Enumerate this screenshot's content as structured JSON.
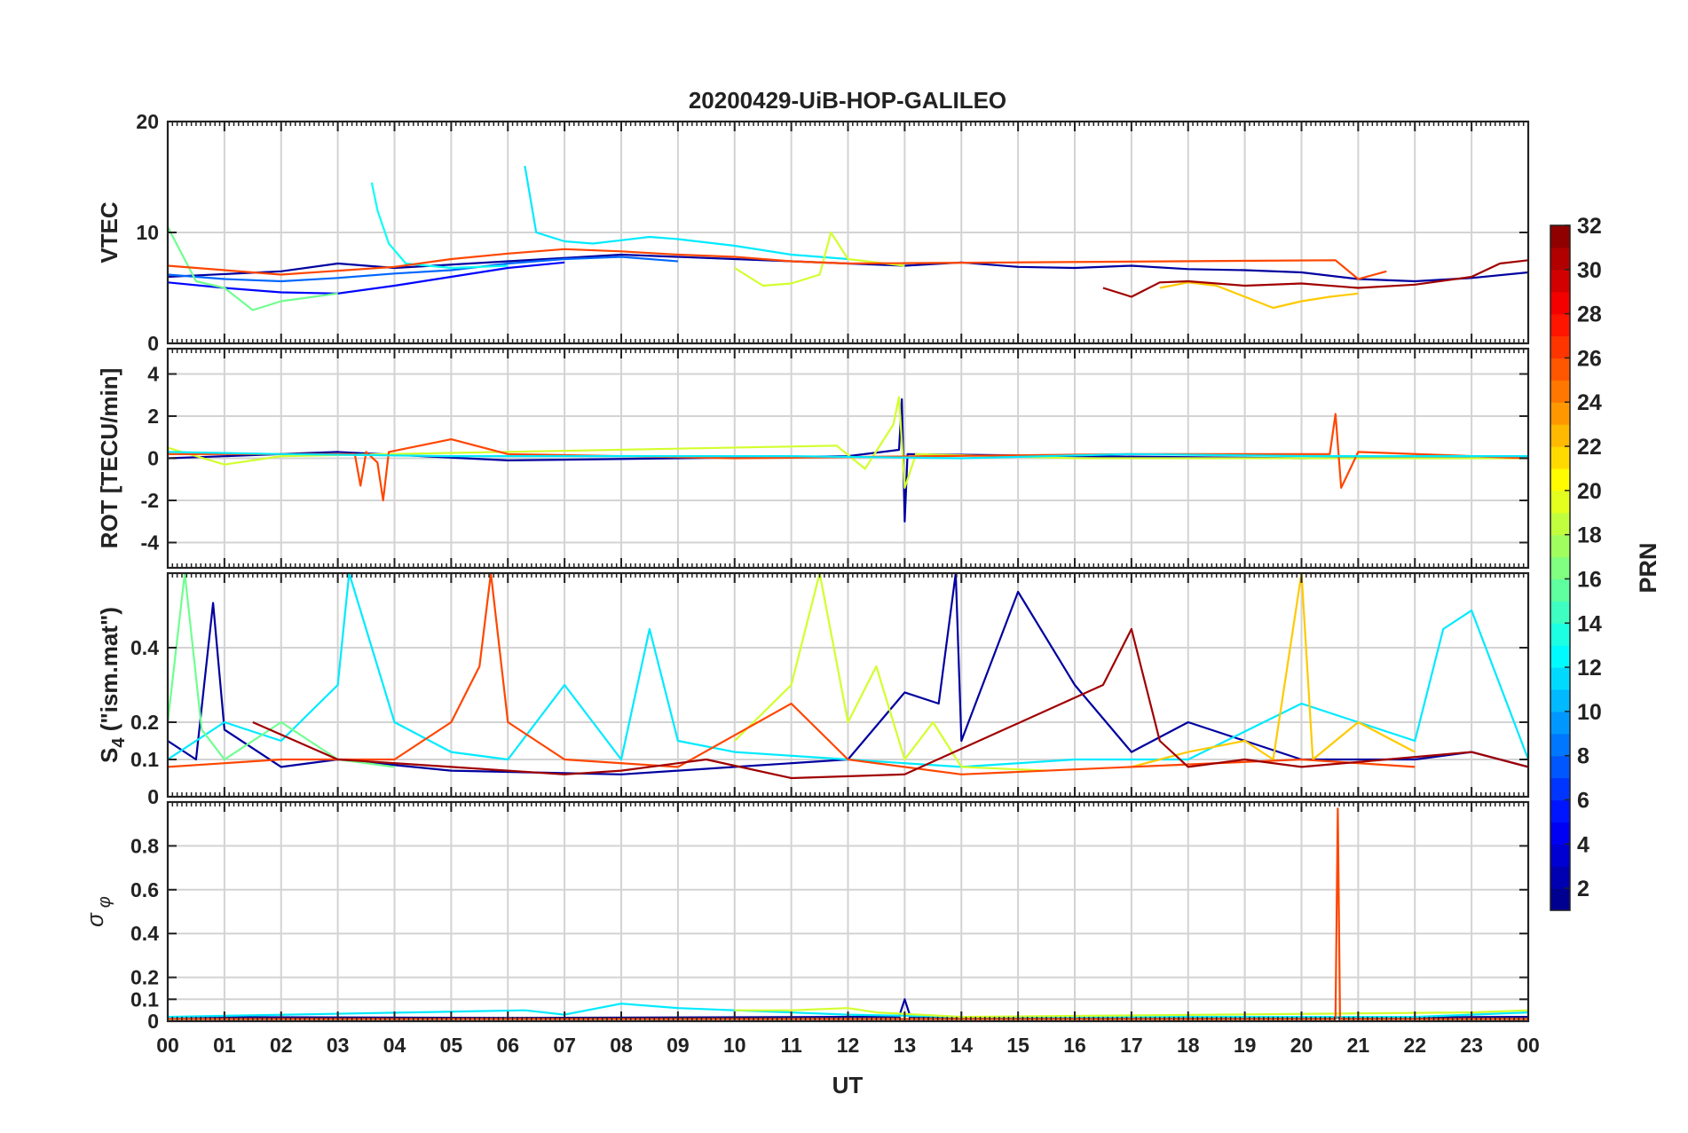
{
  "chart_data": {
    "type": "line",
    "title": "20200429-UiB-HOP-GALILEO",
    "xlabel": "UT",
    "x_tick_labels": [
      "00",
      "01",
      "02",
      "03",
      "04",
      "05",
      "06",
      "07",
      "08",
      "09",
      "10",
      "11",
      "12",
      "13",
      "14",
      "15",
      "16",
      "17",
      "18",
      "19",
      "20",
      "21",
      "22",
      "23",
      "00"
    ],
    "xlim": [
      0,
      24
    ],
    "grid": true,
    "colorbar": {
      "label": "PRN",
      "range": [
        1,
        32
      ],
      "tick_labels": [
        "2",
        "4",
        "6",
        "8",
        "10",
        "12",
        "14",
        "16",
        "18",
        "20",
        "22",
        "24",
        "26",
        "28",
        "30",
        "32"
      ],
      "colormap": "jet"
    },
    "panels": [
      {
        "ylabel": "VTEC",
        "ylim": [
          0,
          20
        ],
        "y_ticks": [
          0,
          10,
          20
        ],
        "y_tick_labels": [
          "0",
          "10",
          "20"
        ],
        "series": [
          {
            "prn": 2,
            "x": [
              0,
              2,
              3,
              4,
              6,
              8,
              10,
              12,
              13,
              14,
              15,
              16,
              17,
              18,
              19,
              20,
              21,
              22,
              23,
              24
            ],
            "values": [
              6.0,
              6.5,
              7.2,
              6.8,
              7.4,
              8.0,
              7.6,
              7.2,
              7.0,
              7.3,
              6.9,
              6.8,
              7.0,
              6.7,
              6.6,
              6.4,
              5.8,
              5.6,
              5.9,
              6.4
            ]
          },
          {
            "prn": 5,
            "x": [
              0,
              1,
              2,
              3,
              4,
              5,
              6,
              7
            ],
            "values": [
              5.5,
              5.0,
              4.6,
              4.5,
              5.2,
              6.0,
              6.8,
              7.3
            ]
          },
          {
            "prn": 8,
            "x": [
              0,
              1,
              2,
              3,
              4,
              5,
              6,
              7,
              8,
              9
            ],
            "values": [
              6.2,
              5.8,
              5.6,
              5.9,
              6.3,
              6.6,
              7.2,
              7.6,
              7.8,
              7.4
            ]
          },
          {
            "prn": 12,
            "x": [
              6.3,
              6.5,
              7,
              7.5,
              8,
              8.5,
              9,
              10,
              11,
              12
            ],
            "values": [
              16.0,
              10.0,
              9.2,
              9.0,
              9.3,
              9.6,
              9.4,
              8.8,
              8.0,
              7.6
            ]
          },
          {
            "prn": 13,
            "x": [
              3.6,
              3.7,
              3.9,
              4.2,
              5,
              6
            ],
            "values": [
              14.5,
              12.0,
              9.0,
              7.2,
              6.8,
              7.0
            ]
          },
          {
            "prn": 16,
            "x": [
              0,
              0.5,
              1,
              1.5,
              2,
              3
            ],
            "values": [
              10.5,
              5.6,
              5.0,
              3.0,
              3.8,
              4.5
            ]
          },
          {
            "prn": 19,
            "x": [
              10,
              10.5,
              11,
              11.5,
              11.7,
              12,
              13
            ],
            "values": [
              6.8,
              5.2,
              5.4,
              6.2,
              10.0,
              7.6,
              7.0
            ]
          },
          {
            "prn": 22,
            "x": [
              17.5,
              18,
              18.5,
              19,
              19.5,
              20,
              20.5,
              21
            ],
            "values": [
              5.0,
              5.5,
              5.2,
              4.2,
              3.2,
              3.8,
              4.2,
              4.5
            ]
          },
          {
            "prn": 26,
            "x": [
              0,
              2,
              4,
              5,
              6,
              7,
              8,
              9,
              10,
              11,
              12,
              20.6,
              21,
              21.5
            ],
            "values": [
              7.0,
              6.2,
              6.9,
              7.6,
              8.1,
              8.5,
              8.3,
              8.0,
              7.8,
              7.4,
              7.2,
              7.5,
              5.8,
              6.5
            ]
          },
          {
            "prn": 31,
            "x": [
              16.5,
              17,
              17.5,
              18,
              19,
              20,
              21,
              22,
              23,
              23.5,
              24
            ],
            "values": [
              5.0,
              4.2,
              5.5,
              5.6,
              5.2,
              5.4,
              5.0,
              5.3,
              6.0,
              7.2,
              7.5
            ]
          }
        ]
      },
      {
        "ylabel": "ROT [TECU/min]",
        "ylim": [
          -5.2,
          5.2
        ],
        "y_ticks": [
          -4,
          -2,
          0,
          2,
          4
        ],
        "y_tick_labels": [
          "-4",
          "-2",
          "0",
          "2",
          "4"
        ],
        "series": [
          {
            "prn": 2,
            "x": [
              0,
              3,
              6,
              9,
              12,
              12.9,
              12.95,
              13,
              13.05,
              16,
              20,
              24
            ],
            "values": [
              0,
              0.3,
              -0.1,
              0,
              0.1,
              0.4,
              2.8,
              -3.0,
              0.2,
              0.1,
              0,
              0.1
            ]
          },
          {
            "prn": 19,
            "x": [
              0,
              1,
              2,
              11.8,
              12.3,
              12.8,
              12.9,
              13,
              13.2,
              16,
              24
            ],
            "values": [
              0.5,
              -0.3,
              0.1,
              0.6,
              -0.5,
              1.6,
              2.9,
              -1.4,
              0.2,
              0,
              0
            ]
          },
          {
            "prn": 26,
            "x": [
              0,
              3.3,
              3.4,
              3.5,
              3.7,
              3.8,
              3.9,
              5,
              6,
              10,
              17,
              20.5,
              20.6,
              20.7,
              21,
              24
            ],
            "values": [
              0.2,
              0.2,
              -1.3,
              0.3,
              -0.2,
              -2.0,
              0.3,
              0.9,
              0.2,
              0,
              0.2,
              0.2,
              2.1,
              -1.4,
              0.3,
              0
            ]
          },
          {
            "prn": 12,
            "x": [
              0,
              2,
              5,
              8,
              11,
              14,
              17,
              20,
              24
            ],
            "values": [
              0.3,
              0.2,
              0.1,
              0.1,
              0.1,
              0,
              0.2,
              0.1,
              0.1
            ]
          }
        ]
      },
      {
        "ylabel": "S4 (\"ism.mat\")",
        "ylabel_main": "S",
        "ylabel_sub": "4",
        "ylabel_rest": " (\"ism.mat\")",
        "ylim": [
          0,
          0.6
        ],
        "y_ticks": [
          0,
          0.1,
          0.2,
          0.4
        ],
        "y_tick_labels": [
          "0",
          "0.1",
          "0.2",
          "0.4"
        ],
        "series": [
          {
            "prn": 2,
            "x": [
              0,
              0.5,
              0.8,
              1,
              2,
              3,
              5,
              8,
              10,
              12,
              13,
              13.6,
              13.9,
              14,
              15,
              16,
              17,
              18,
              20,
              22,
              23,
              24
            ],
            "values": [
              0.15,
              0.1,
              0.52,
              0.18,
              0.08,
              0.1,
              0.07,
              0.06,
              0.08,
              0.1,
              0.28,
              0.25,
              0.6,
              0.15,
              0.55,
              0.3,
              0.12,
              0.2,
              0.1,
              0.1,
              0.12,
              0.08
            ]
          },
          {
            "prn": 12,
            "x": [
              0,
              1,
              2,
              3,
              3.2,
              4,
              5,
              6,
              7,
              8,
              8.5,
              9,
              10,
              12,
              14,
              16,
              18,
              20,
              22,
              22.5,
              23,
              23.5,
              24
            ],
            "values": [
              0.1,
              0.2,
              0.15,
              0.3,
              0.6,
              0.2,
              0.12,
              0.1,
              0.3,
              0.1,
              0.45,
              0.15,
              0.12,
              0.1,
              0.08,
              0.1,
              0.1,
              0.25,
              0.15,
              0.45,
              0.5,
              0.3,
              0.1
            ]
          },
          {
            "prn": 16,
            "x": [
              0,
              0.3,
              0.6,
              1,
              2,
              3,
              4
            ],
            "values": [
              0.2,
              0.6,
              0.18,
              0.1,
              0.2,
              0.1,
              0.08
            ]
          },
          {
            "prn": 19,
            "x": [
              10,
              11,
              11.5,
              12,
              12.5,
              13,
              13.5,
              14,
              15.5
            ],
            "values": [
              0.15,
              0.3,
              0.6,
              0.2,
              0.35,
              0.1,
              0.2,
              0.08,
              0.07
            ]
          },
          {
            "prn": 22,
            "x": [
              17,
              18,
              19,
              19.5,
              20,
              20.2,
              21,
              22
            ],
            "values": [
              0.08,
              0.12,
              0.15,
              0.1,
              0.6,
              0.1,
              0.2,
              0.12
            ]
          },
          {
            "prn": 26,
            "x": [
              0,
              2,
              4,
              5,
              5.5,
              5.7,
              6,
              7,
              9,
              11,
              12,
              14,
              17,
              20,
              22
            ],
            "values": [
              0.08,
              0.1,
              0.1,
              0.2,
              0.35,
              0.6,
              0.2,
              0.1,
              0.08,
              0.25,
              0.1,
              0.06,
              0.08,
              0.1,
              0.08
            ]
          },
          {
            "prn": 31,
            "x": [
              1.5,
              3,
              5,
              7,
              8,
              9.5,
              11,
              13,
              16.5,
              17,
              17.5,
              18,
              19,
              20,
              23,
              24
            ],
            "values": [
              0.2,
              0.1,
              0.08,
              0.06,
              0.07,
              0.1,
              0.05,
              0.06,
              0.3,
              0.45,
              0.15,
              0.08,
              0.1,
              0.08,
              0.12,
              0.08
            ]
          }
        ]
      },
      {
        "ylabel": "σ φ",
        "ylabel_main": "σ",
        "ylabel_sub": "φ",
        "ylim": [
          0,
          1.0
        ],
        "y_ticks": [
          0,
          0.1,
          0.2,
          0.4,
          0.6,
          0.8
        ],
        "y_tick_labels": [
          "0",
          "0.1",
          "0.2",
          "0.4",
          "0.6",
          "0.8"
        ],
        "series": [
          {
            "prn": 2,
            "x": [
              0,
              6,
              12,
              12.9,
              13,
              13.1,
              18,
              24
            ],
            "values": [
              0.02,
              0.015,
              0.02,
              0.02,
              0.1,
              0.02,
              0.015,
              0.02
            ]
          },
          {
            "prn": 12,
            "x": [
              0,
              6.3,
              7,
              8,
              9,
              10,
              12,
              14,
              16,
              22,
              23,
              24
            ],
            "values": [
              0.02,
              0.05,
              0.03,
              0.08,
              0.06,
              0.05,
              0.03,
              0.02,
              0.02,
              0.02,
              0.03,
              0.04
            ]
          },
          {
            "prn": 19,
            "x": [
              10,
              11,
              12,
              12.5,
              14,
              23,
              24
            ],
            "values": [
              0.05,
              0.05,
              0.06,
              0.04,
              0.02,
              0.04,
              0.05
            ]
          },
          {
            "prn": 26,
            "x": [
              0,
              10,
              20.6,
              20.64,
              20.68,
              20.75,
              24
            ],
            "values": [
              0.01,
              0.01,
              0.01,
              0.97,
              0.01,
              0.01,
              0.01
            ]
          }
        ]
      }
    ]
  }
}
